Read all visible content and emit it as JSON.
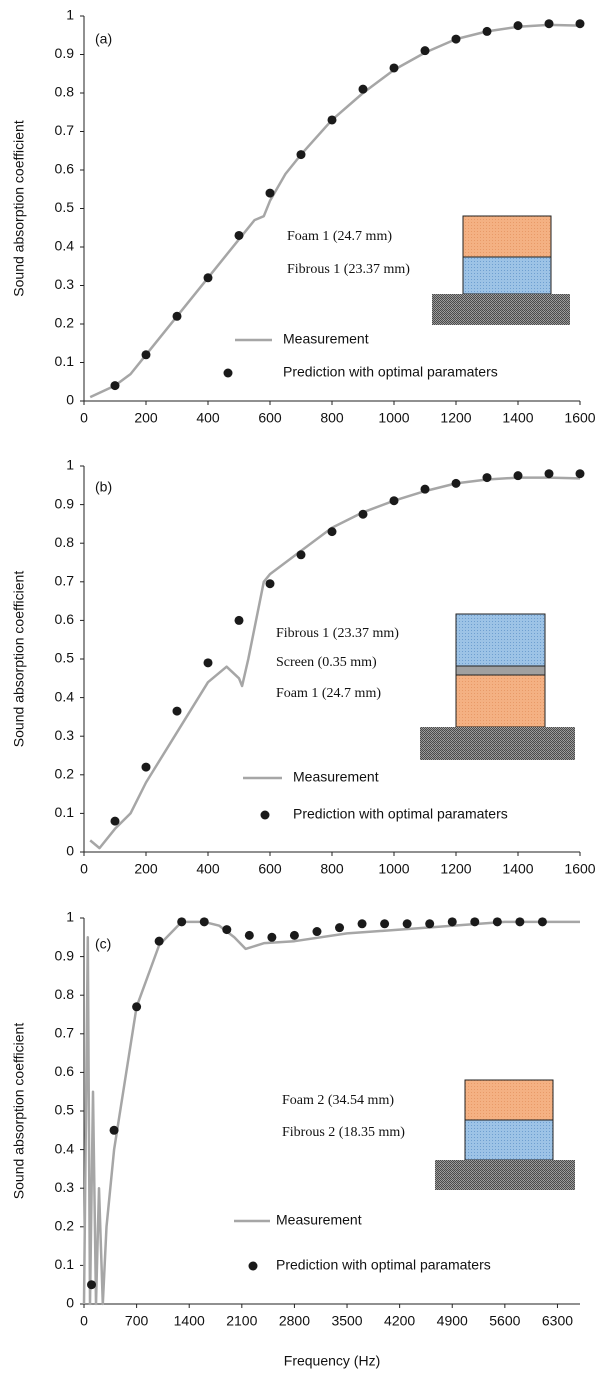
{
  "chart_data": [
    {
      "type": "line",
      "panel_label": "(a)",
      "ylabel": "Sound absorption coefficient",
      "xlim": [
        0,
        1600
      ],
      "xticks": [
        0,
        200,
        400,
        600,
        800,
        1000,
        1200,
        1400,
        1600
      ],
      "ylim": [
        0,
        1
      ],
      "yticks": [
        0,
        0.1,
        0.2,
        0.3,
        0.4,
        0.5,
        0.6,
        0.7,
        0.8,
        0.9,
        1
      ],
      "layer_labels": [
        "Foam 1 (24.7 mm)",
        "Fibrous 1 (23.37 mm)"
      ],
      "series": [
        {
          "name": "Measurement",
          "type": "line",
          "color": "#a6a6a6",
          "x": [
            20,
            100,
            150,
            200,
            300,
            400,
            500,
            550,
            580,
            600,
            650,
            700,
            800,
            900,
            1000,
            1100,
            1200,
            1300,
            1400,
            1500,
            1600
          ],
          "values": [
            0.01,
            0.04,
            0.07,
            0.12,
            0.22,
            0.32,
            0.42,
            0.47,
            0.48,
            0.52,
            0.59,
            0.64,
            0.73,
            0.8,
            0.86,
            0.905,
            0.94,
            0.96,
            0.972,
            0.977,
            0.975
          ]
        },
        {
          "name": "Prediction with optimal paramaters",
          "type": "scatter",
          "color": "#1a1a1a",
          "x": [
            100,
            200,
            300,
            400,
            500,
            600,
            700,
            800,
            900,
            1000,
            1100,
            1200,
            1300,
            1400,
            1500,
            1600
          ],
          "values": [
            0.04,
            0.12,
            0.22,
            0.32,
            0.43,
            0.54,
            0.64,
            0.73,
            0.81,
            0.865,
            0.91,
            0.94,
            0.96,
            0.975,
            0.98,
            0.98
          ]
        }
      ]
    },
    {
      "type": "line",
      "panel_label": "(b)",
      "ylabel": "Sound absorption coefficient",
      "xlim": [
        0,
        1600
      ],
      "xticks": [
        0,
        200,
        400,
        600,
        800,
        1000,
        1200,
        1400,
        1600
      ],
      "ylim": [
        0,
        1
      ],
      "yticks": [
        0,
        0.1,
        0.2,
        0.3,
        0.4,
        0.5,
        0.6,
        0.7,
        0.8,
        0.9,
        1
      ],
      "layer_labels": [
        "Fibrous 1 (23.37 mm)",
        "Screen (0.35 mm)",
        "Foam 1 (24.7 mm)"
      ],
      "series": [
        {
          "name": "Measurement",
          "type": "line",
          "color": "#a6a6a6",
          "x": [
            20,
            50,
            100,
            150,
            200,
            300,
            400,
            460,
            500,
            510,
            530,
            580,
            600,
            700,
            800,
            900,
            1000,
            1100,
            1200,
            1300,
            1400,
            1500,
            1600
          ],
          "values": [
            0.03,
            0.01,
            0.06,
            0.1,
            0.18,
            0.31,
            0.44,
            0.48,
            0.45,
            0.43,
            0.5,
            0.7,
            0.72,
            0.78,
            0.84,
            0.88,
            0.91,
            0.935,
            0.955,
            0.965,
            0.97,
            0.97,
            0.968
          ]
        },
        {
          "name": "Prediction with optimal paramaters",
          "type": "scatter",
          "color": "#1a1a1a",
          "x": [
            100,
            200,
            300,
            400,
            500,
            600,
            700,
            800,
            900,
            1000,
            1100,
            1200,
            1300,
            1400,
            1500,
            1600
          ],
          "values": [
            0.08,
            0.22,
            0.365,
            0.49,
            0.6,
            0.695,
            0.77,
            0.83,
            0.875,
            0.91,
            0.94,
            0.955,
            0.97,
            0.975,
            0.98,
            0.98
          ]
        }
      ]
    },
    {
      "type": "line",
      "panel_label": "(c)",
      "ylabel": "Sound absorption coefficient",
      "xlabel": "Frequency (Hz)",
      "xlim": [
        0,
        6600
      ],
      "xticks": [
        0,
        700,
        1400,
        2100,
        2800,
        3500,
        4200,
        4900,
        5600,
        6300
      ],
      "ylim": [
        0,
        1
      ],
      "yticks": [
        0,
        0.1,
        0.2,
        0.3,
        0.4,
        0.5,
        0.6,
        0.7,
        0.8,
        0.9,
        1
      ],
      "layer_labels": [
        "Foam 2 (34.54 mm)",
        "Fibrous 2 (18.35 mm)"
      ],
      "series": [
        {
          "name": "Measurement",
          "type": "line",
          "color": "#a6a6a6",
          "x": [
            0,
            50,
            80,
            120,
            160,
            200,
            250,
            300,
            400,
            700,
            1000,
            1300,
            1600,
            1800,
            2000,
            2150,
            2400,
            2800,
            3500,
            4200,
            4900,
            5600,
            6300,
            6600
          ],
          "values": [
            0,
            0.95,
            0,
            0.55,
            0,
            0.3,
            0,
            0.2,
            0.4,
            0.77,
            0.93,
            0.99,
            0.99,
            0.98,
            0.95,
            0.92,
            0.935,
            0.94,
            0.96,
            0.97,
            0.98,
            0.99,
            0.99,
            0.99
          ]
        },
        {
          "name": "Prediction with optimal paramaters",
          "type": "scatter",
          "color": "#1a1a1a",
          "x": [
            100,
            400,
            700,
            1000,
            1300,
            1600,
            1900,
            2200,
            2500,
            2800,
            3100,
            3400,
            3700,
            4000,
            4300,
            4600,
            4900,
            5200,
            5500,
            5800,
            6100
          ],
          "values": [
            0.05,
            0.45,
            0.77,
            0.94,
            0.99,
            0.99,
            0.97,
            0.955,
            0.95,
            0.955,
            0.965,
            0.975,
            0.985,
            0.985,
            0.985,
            0.985,
            0.99,
            0.99,
            0.99,
            0.99,
            0.99
          ]
        }
      ]
    }
  ]
}
